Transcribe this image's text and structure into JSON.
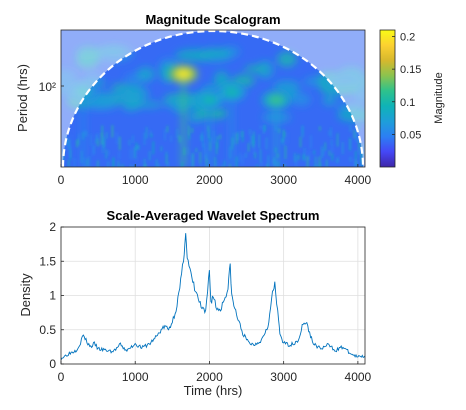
{
  "chart_data": [
    {
      "type": "heatmap",
      "title": "Magnitude Scalogram",
      "xlabel": "",
      "ylabel": "Period (hrs)",
      "xlim": [
        0,
        4096
      ],
      "xticks": [
        0,
        1000,
        2000,
        3000,
        4000
      ],
      "xtick_labels": [
        "0",
        "1000",
        "2000",
        "3000",
        "4000"
      ],
      "ytick_labels": [
        "10²"
      ],
      "yscale": "log",
      "colorbar": {
        "label": "Magnitude",
        "range": [
          0,
          0.21
        ],
        "ticks": [
          0.05,
          0.1,
          0.15,
          0.2
        ],
        "tick_labels": [
          "0.05",
          "0.1",
          "0.15",
          "0.2"
        ],
        "colormap": [
          "#3e26a8",
          "#4547f6",
          "#2c7ff3",
          "#1e9ed9",
          "#0fb3b7",
          "#2ec28c",
          "#8bc34f",
          "#d6b82d",
          "#fcd131",
          "#f9fb15"
        ]
      },
      "cone_of_influence": "white dashed boundary",
      "hotspots": [
        {
          "time": 1650,
          "label": "peak",
          "value": 0.2
        },
        {
          "time": 2000,
          "value": 0.1
        },
        {
          "time": 2300,
          "value": 0.1
        },
        {
          "time": 2900,
          "value": 0.12
        },
        {
          "time": 300,
          "value": 0.09
        }
      ]
    },
    {
      "type": "line",
      "title": "Scale-Averaged Wavelet Spectrum",
      "xlabel": "Time (hrs)",
      "ylabel": "Density",
      "xlim": [
        0,
        4096
      ],
      "ylim": [
        0,
        2
      ],
      "grid": true,
      "xticks": [
        0,
        1000,
        2000,
        3000,
        4000
      ],
      "xtick_labels": [
        "0",
        "1000",
        "2000",
        "3000",
        "4000"
      ],
      "yticks": [
        0,
        0.5,
        1,
        1.5,
        2
      ],
      "ytick_labels": [
        "0",
        "0.5",
        "1",
        "1.5",
        "2"
      ],
      "line_color": "#0072bd",
      "series": [
        {
          "x": [
            0,
            100,
            200,
            250,
            300,
            350,
            400,
            450,
            500,
            600,
            700,
            800,
            850,
            900,
            1000,
            1050,
            1100,
            1200,
            1300,
            1350,
            1400,
            1450,
            1500,
            1550,
            1600,
            1650,
            1680,
            1700,
            1750,
            1800,
            1850,
            1900,
            1950,
            2000,
            2020,
            2050,
            2100,
            2150,
            2200,
            2250,
            2280,
            2300,
            2330,
            2400,
            2450,
            2500,
            2550,
            2600,
            2700,
            2800,
            2850,
            2880,
            2920,
            2950,
            3000,
            3100,
            3200,
            3250,
            3300,
            3350,
            3400,
            3500,
            3600,
            3700,
            3800,
            3900,
            4000,
            4096
          ],
          "y": [
            0.08,
            0.15,
            0.2,
            0.28,
            0.42,
            0.32,
            0.25,
            0.3,
            0.22,
            0.2,
            0.18,
            0.28,
            0.22,
            0.2,
            0.3,
            0.26,
            0.24,
            0.3,
            0.42,
            0.5,
            0.55,
            0.5,
            0.62,
            0.8,
            1.1,
            1.5,
            1.95,
            1.55,
            1.3,
            1.1,
            0.95,
            0.8,
            0.75,
            1.38,
            0.9,
            1.0,
            0.8,
            0.8,
            0.95,
            1.1,
            1.45,
            1.0,
            0.85,
            0.6,
            0.45,
            0.35,
            0.3,
            0.28,
            0.35,
            0.6,
            1.05,
            1.15,
            0.75,
            0.45,
            0.3,
            0.28,
            0.35,
            0.55,
            0.62,
            0.45,
            0.3,
            0.22,
            0.28,
            0.2,
            0.25,
            0.15,
            0.1,
            0.12
          ]
        }
      ]
    }
  ]
}
